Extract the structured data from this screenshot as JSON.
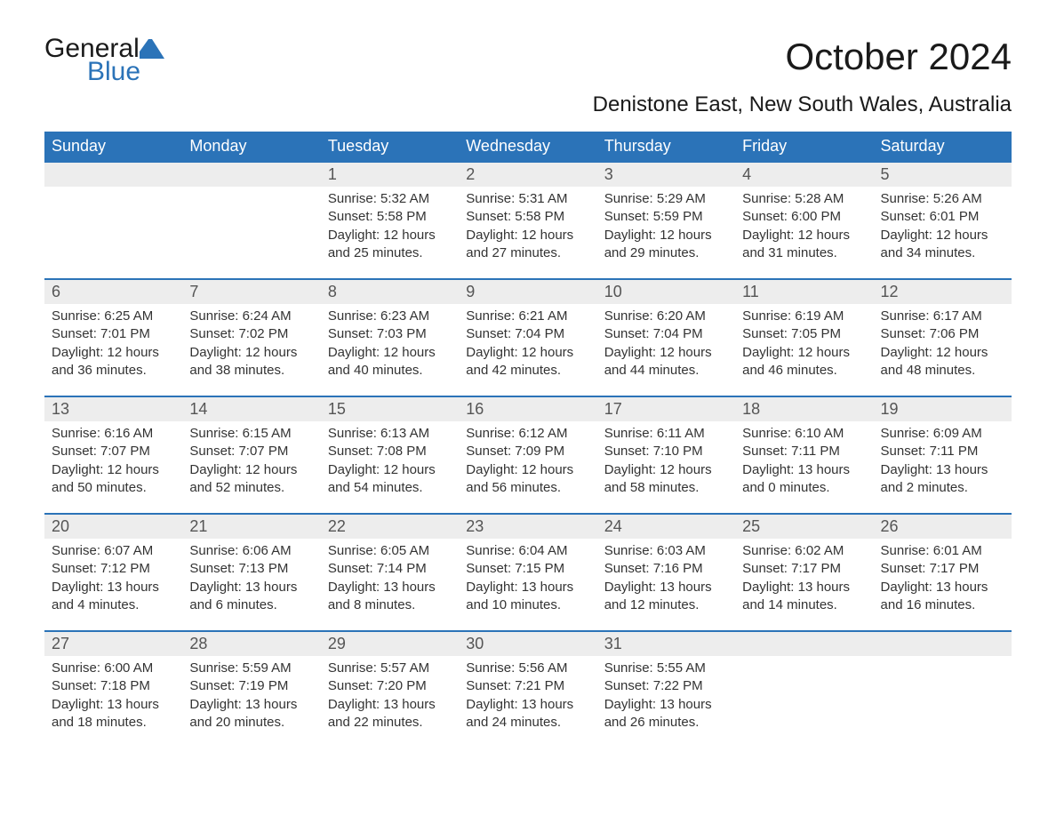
{
  "brand": {
    "text1": "General",
    "text2": "Blue",
    "icon_color": "#2b73b8"
  },
  "title": "October 2024",
  "subtitle": "Denistone East, New South Wales, Australia",
  "colors": {
    "header_bg": "#2b73b8",
    "header_text": "#ffffff",
    "daynum_bg": "#ededed",
    "border": "#2b73b8",
    "body_text": "#333333",
    "page_bg": "#ffffff"
  },
  "fontsize": {
    "title": 42,
    "subtitle": 24,
    "weekday": 18,
    "daynum": 18,
    "body": 15
  },
  "weekdays": [
    "Sunday",
    "Monday",
    "Tuesday",
    "Wednesday",
    "Thursday",
    "Friday",
    "Saturday"
  ],
  "weeks": [
    [
      null,
      null,
      {
        "n": "1",
        "sr": "Sunrise: 5:32 AM",
        "ss": "Sunset: 5:58 PM",
        "d1": "Daylight: 12 hours",
        "d2": "and 25 minutes."
      },
      {
        "n": "2",
        "sr": "Sunrise: 5:31 AM",
        "ss": "Sunset: 5:58 PM",
        "d1": "Daylight: 12 hours",
        "d2": "and 27 minutes."
      },
      {
        "n": "3",
        "sr": "Sunrise: 5:29 AM",
        "ss": "Sunset: 5:59 PM",
        "d1": "Daylight: 12 hours",
        "d2": "and 29 minutes."
      },
      {
        "n": "4",
        "sr": "Sunrise: 5:28 AM",
        "ss": "Sunset: 6:00 PM",
        "d1": "Daylight: 12 hours",
        "d2": "and 31 minutes."
      },
      {
        "n": "5",
        "sr": "Sunrise: 5:26 AM",
        "ss": "Sunset: 6:01 PM",
        "d1": "Daylight: 12 hours",
        "d2": "and 34 minutes."
      }
    ],
    [
      {
        "n": "6",
        "sr": "Sunrise: 6:25 AM",
        "ss": "Sunset: 7:01 PM",
        "d1": "Daylight: 12 hours",
        "d2": "and 36 minutes."
      },
      {
        "n": "7",
        "sr": "Sunrise: 6:24 AM",
        "ss": "Sunset: 7:02 PM",
        "d1": "Daylight: 12 hours",
        "d2": "and 38 minutes."
      },
      {
        "n": "8",
        "sr": "Sunrise: 6:23 AM",
        "ss": "Sunset: 7:03 PM",
        "d1": "Daylight: 12 hours",
        "d2": "and 40 minutes."
      },
      {
        "n": "9",
        "sr": "Sunrise: 6:21 AM",
        "ss": "Sunset: 7:04 PM",
        "d1": "Daylight: 12 hours",
        "d2": "and 42 minutes."
      },
      {
        "n": "10",
        "sr": "Sunrise: 6:20 AM",
        "ss": "Sunset: 7:04 PM",
        "d1": "Daylight: 12 hours",
        "d2": "and 44 minutes."
      },
      {
        "n": "11",
        "sr": "Sunrise: 6:19 AM",
        "ss": "Sunset: 7:05 PM",
        "d1": "Daylight: 12 hours",
        "d2": "and 46 minutes."
      },
      {
        "n": "12",
        "sr": "Sunrise: 6:17 AM",
        "ss": "Sunset: 7:06 PM",
        "d1": "Daylight: 12 hours",
        "d2": "and 48 minutes."
      }
    ],
    [
      {
        "n": "13",
        "sr": "Sunrise: 6:16 AM",
        "ss": "Sunset: 7:07 PM",
        "d1": "Daylight: 12 hours",
        "d2": "and 50 minutes."
      },
      {
        "n": "14",
        "sr": "Sunrise: 6:15 AM",
        "ss": "Sunset: 7:07 PM",
        "d1": "Daylight: 12 hours",
        "d2": "and 52 minutes."
      },
      {
        "n": "15",
        "sr": "Sunrise: 6:13 AM",
        "ss": "Sunset: 7:08 PM",
        "d1": "Daylight: 12 hours",
        "d2": "and 54 minutes."
      },
      {
        "n": "16",
        "sr": "Sunrise: 6:12 AM",
        "ss": "Sunset: 7:09 PM",
        "d1": "Daylight: 12 hours",
        "d2": "and 56 minutes."
      },
      {
        "n": "17",
        "sr": "Sunrise: 6:11 AM",
        "ss": "Sunset: 7:10 PM",
        "d1": "Daylight: 12 hours",
        "d2": "and 58 minutes."
      },
      {
        "n": "18",
        "sr": "Sunrise: 6:10 AM",
        "ss": "Sunset: 7:11 PM",
        "d1": "Daylight: 13 hours",
        "d2": "and 0 minutes."
      },
      {
        "n": "19",
        "sr": "Sunrise: 6:09 AM",
        "ss": "Sunset: 7:11 PM",
        "d1": "Daylight: 13 hours",
        "d2": "and 2 minutes."
      }
    ],
    [
      {
        "n": "20",
        "sr": "Sunrise: 6:07 AM",
        "ss": "Sunset: 7:12 PM",
        "d1": "Daylight: 13 hours",
        "d2": "and 4 minutes."
      },
      {
        "n": "21",
        "sr": "Sunrise: 6:06 AM",
        "ss": "Sunset: 7:13 PM",
        "d1": "Daylight: 13 hours",
        "d2": "and 6 minutes."
      },
      {
        "n": "22",
        "sr": "Sunrise: 6:05 AM",
        "ss": "Sunset: 7:14 PM",
        "d1": "Daylight: 13 hours",
        "d2": "and 8 minutes."
      },
      {
        "n": "23",
        "sr": "Sunrise: 6:04 AM",
        "ss": "Sunset: 7:15 PM",
        "d1": "Daylight: 13 hours",
        "d2": "and 10 minutes."
      },
      {
        "n": "24",
        "sr": "Sunrise: 6:03 AM",
        "ss": "Sunset: 7:16 PM",
        "d1": "Daylight: 13 hours",
        "d2": "and 12 minutes."
      },
      {
        "n": "25",
        "sr": "Sunrise: 6:02 AM",
        "ss": "Sunset: 7:17 PM",
        "d1": "Daylight: 13 hours",
        "d2": "and 14 minutes."
      },
      {
        "n": "26",
        "sr": "Sunrise: 6:01 AM",
        "ss": "Sunset: 7:17 PM",
        "d1": "Daylight: 13 hours",
        "d2": "and 16 minutes."
      }
    ],
    [
      {
        "n": "27",
        "sr": "Sunrise: 6:00 AM",
        "ss": "Sunset: 7:18 PM",
        "d1": "Daylight: 13 hours",
        "d2": "and 18 minutes."
      },
      {
        "n": "28",
        "sr": "Sunrise: 5:59 AM",
        "ss": "Sunset: 7:19 PM",
        "d1": "Daylight: 13 hours",
        "d2": "and 20 minutes."
      },
      {
        "n": "29",
        "sr": "Sunrise: 5:57 AM",
        "ss": "Sunset: 7:20 PM",
        "d1": "Daylight: 13 hours",
        "d2": "and 22 minutes."
      },
      {
        "n": "30",
        "sr": "Sunrise: 5:56 AM",
        "ss": "Sunset: 7:21 PM",
        "d1": "Daylight: 13 hours",
        "d2": "and 24 minutes."
      },
      {
        "n": "31",
        "sr": "Sunrise: 5:55 AM",
        "ss": "Sunset: 7:22 PM",
        "d1": "Daylight: 13 hours",
        "d2": "and 26 minutes."
      },
      null,
      null
    ]
  ]
}
